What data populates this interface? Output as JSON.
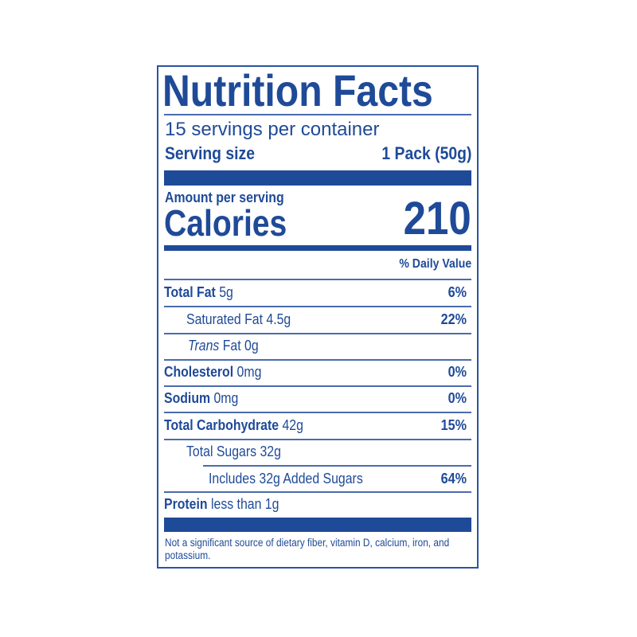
{
  "label": {
    "title": "Nutrition Facts",
    "servings_per_container": "15 servings per container",
    "serving_size_label": "Serving size",
    "serving_size_value": "1 Pack (50g)",
    "amount_per_serving": "Amount per serving",
    "calories_label": "Calories",
    "calories_value": "210",
    "daily_value_header": "% Daily Value",
    "rows": [
      {
        "name": "Total Fat",
        "amount": "5g",
        "dv": "6%"
      },
      {
        "name": "Saturated Fat",
        "amount": "4.5g",
        "dv": "22%"
      },
      {
        "name_italic": "Trans",
        "name": "Fat",
        "amount": "0g",
        "dv": ""
      },
      {
        "name": "Cholesterol",
        "amount": "0mg",
        "dv": "0%"
      },
      {
        "name": "Sodium",
        "amount": "0mg",
        "dv": "0%"
      },
      {
        "name": "Total Carbohydrate",
        "amount": "42g",
        "dv": "15%"
      },
      {
        "name": "Total Sugars",
        "amount": "32g",
        "dv": ""
      },
      {
        "name": "Includes 32g Added Sugars",
        "amount": "",
        "dv": "64%"
      },
      {
        "name": "Protein",
        "amount": "less than 1g",
        "dv": ""
      }
    ],
    "footnote": "Not a significant source of dietary fiber, vitamin D, calcium, iron, and potassium."
  },
  "colors": {
    "ink": "#1f4a98",
    "background": "#ffffff"
  }
}
